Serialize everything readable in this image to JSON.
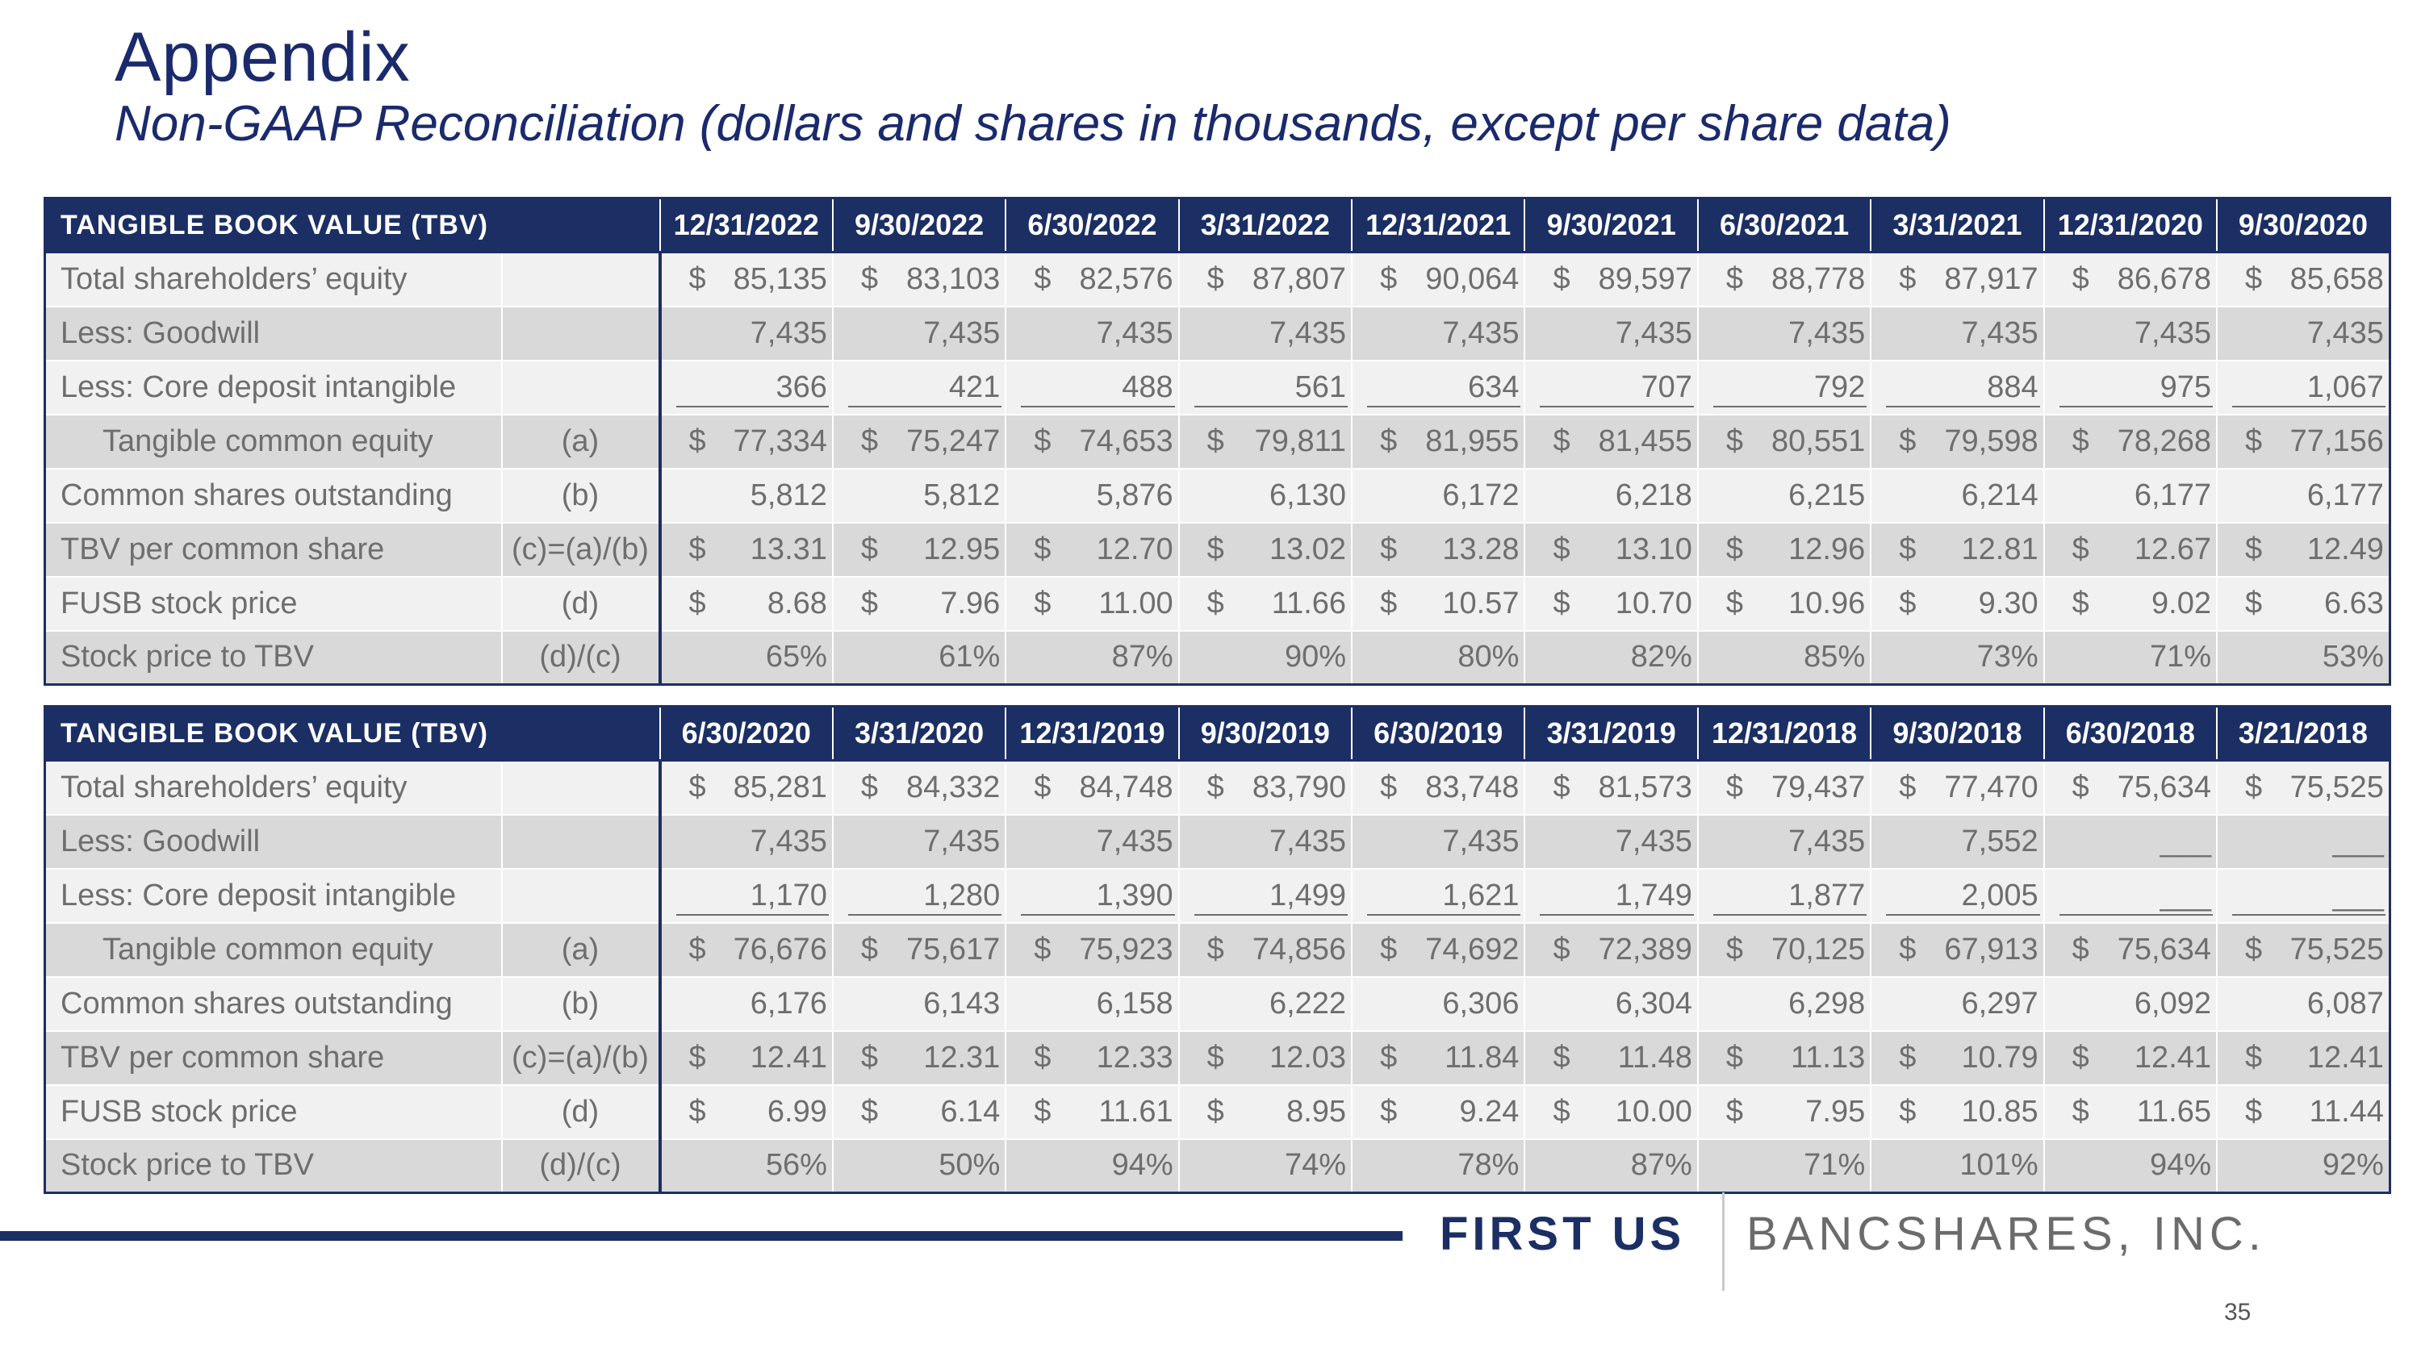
{
  "slide": {
    "title": "Appendix",
    "subtitle": "Non-GAAP Reconciliation (dollars and shares in thousands, except per share data)",
    "page_number": "35"
  },
  "footer": {
    "logo_bold": "FIRST US",
    "logo_light": "BANCSHARES, INC."
  },
  "tables": [
    {
      "header": "TANGIBLE BOOK VALUE (TBV)",
      "dates": [
        "12/31/2022",
        "9/30/2022",
        "6/30/2022",
        "3/31/2022",
        "12/31/2021",
        "9/30/2021",
        "6/30/2021",
        "3/31/2021",
        "12/31/2020",
        "9/30/2020"
      ],
      "rows": [
        {
          "label": "Total shareholders’ equity",
          "ref": "",
          "dollar": "$",
          "values": [
            "85,135",
            "83,103",
            "82,576",
            "87,807",
            "90,064",
            "89,597",
            "88,778",
            "87,917",
            "86,678",
            "85,658"
          ]
        },
        {
          "label": "Less: Goodwill",
          "ref": "",
          "dollar": "",
          "values": [
            "7,435",
            "7,435",
            "7,435",
            "7,435",
            "7,435",
            "7,435",
            "7,435",
            "7,435",
            "7,435",
            "7,435"
          ]
        },
        {
          "label": "Less: Core deposit intangible",
          "ref": "",
          "dollar": "",
          "values": [
            "366",
            "421",
            "488",
            "561",
            "634",
            "707",
            "792",
            "884",
            "975",
            "1,067"
          ]
        },
        {
          "label": "Tangible common equity",
          "ref": "(a)",
          "dollar": "$",
          "values": [
            "77,334",
            "75,247",
            "74,653",
            "79,811",
            "81,955",
            "81,455",
            "80,551",
            "79,598",
            "78,268",
            "77,156"
          ]
        },
        {
          "label": "Common shares outstanding",
          "ref": "(b)",
          "dollar": "",
          "values": [
            "5,812",
            "5,812",
            "5,876",
            "6,130",
            "6,172",
            "6,218",
            "6,215",
            "6,214",
            "6,177",
            "6,177"
          ]
        },
        {
          "label": "TBV per common share",
          "ref": "(c)=(a)/(b)",
          "dollar": "$",
          "values": [
            "13.31",
            "12.95",
            "12.70",
            "13.02",
            "13.28",
            "13.10",
            "12.96",
            "12.81",
            "12.67",
            "12.49"
          ]
        },
        {
          "label": "FUSB stock price",
          "ref": "(d)",
          "dollar": "$",
          "values": [
            "8.68",
            "7.96",
            "11.00",
            "11.66",
            "10.57",
            "10.70",
            "10.96",
            "9.30",
            "9.02",
            "6.63"
          ]
        },
        {
          "label": "Stock price to TBV",
          "ref": "(d)/(c)",
          "dollar": "",
          "values": [
            "65%",
            "61%",
            "87%",
            "90%",
            "80%",
            "82%",
            "85%",
            "73%",
            "71%",
            "53%"
          ]
        }
      ]
    },
    {
      "header": "TANGIBLE BOOK VALUE (TBV)",
      "dates": [
        "6/30/2020",
        "3/31/2020",
        "12/31/2019",
        "9/30/2019",
        "6/30/2019",
        "3/31/2019",
        "12/31/2018",
        "9/30/2018",
        "6/30/2018",
        "3/21/2018"
      ],
      "rows": [
        {
          "label": "Total shareholders’ equity",
          "ref": "",
          "dollar": "$",
          "values": [
            "85,281",
            "84,332",
            "84,748",
            "83,790",
            "83,748",
            "81,573",
            "79,437",
            "77,470",
            "75,634",
            "75,525"
          ]
        },
        {
          "label": "Less: Goodwill",
          "ref": "",
          "dollar": "",
          "values": [
            "7,435",
            "7,435",
            "7,435",
            "7,435",
            "7,435",
            "7,435",
            "7,435",
            "7,552",
            "___",
            "___"
          ]
        },
        {
          "label": "Less: Core deposit intangible",
          "ref": "",
          "dollar": "",
          "values": [
            "1,170",
            "1,280",
            "1,390",
            "1,499",
            "1,621",
            "1,749",
            "1,877",
            "2,005",
            "___",
            "___"
          ]
        },
        {
          "label": "Tangible common equity",
          "ref": "(a)",
          "dollar": "$",
          "values": [
            "76,676",
            "75,617",
            "75,923",
            "74,856",
            "74,692",
            "72,389",
            "70,125",
            "67,913",
            "75,634",
            "75,525"
          ]
        },
        {
          "label": "Common shares outstanding",
          "ref": "(b)",
          "dollar": "",
          "values": [
            "6,176",
            "6,143",
            "6,158",
            "6,222",
            "6,306",
            "6,304",
            "6,298",
            "6,297",
            "6,092",
            "6,087"
          ]
        },
        {
          "label": "TBV per common share",
          "ref": "(c)=(a)/(b)",
          "dollar": "$",
          "values": [
            "12.41",
            "12.31",
            "12.33",
            "12.03",
            "11.84",
            "11.48",
            "11.13",
            "10.79",
            "12.41",
            "12.41"
          ]
        },
        {
          "label": "FUSB stock price",
          "ref": "(d)",
          "dollar": "$",
          "values": [
            "6.99",
            "6.14",
            "11.61",
            "8.95",
            "9.24",
            "10.00",
            "7.95",
            "10.85",
            "11.65",
            "11.44"
          ]
        },
        {
          "label": "Stock price to TBV",
          "ref": "(d)/(c)",
          "dollar": "",
          "values": [
            "56%",
            "50%",
            "94%",
            "74%",
            "78%",
            "87%",
            "71%",
            "101%",
            "94%",
            "92%"
          ]
        }
      ]
    }
  ]
}
